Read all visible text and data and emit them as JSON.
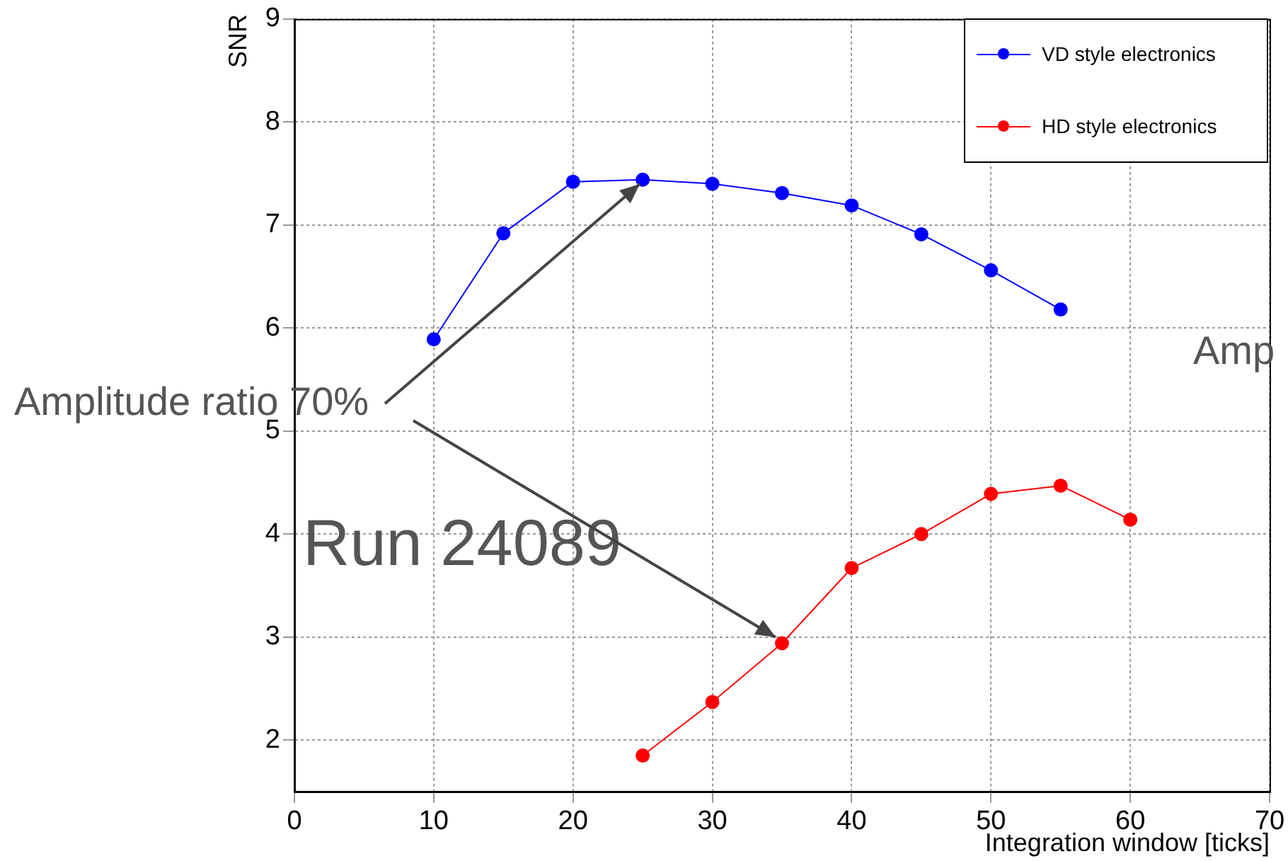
{
  "chart_data": {
    "type": "line",
    "xlabel": "Integration window [ticks]",
    "ylabel": "SNR",
    "xlim": [
      0,
      70
    ],
    "xticks": [
      0,
      10,
      20,
      30,
      40,
      50,
      60,
      70
    ],
    "ylim": [
      1.5,
      9
    ],
    "yticks": [
      2,
      3,
      4,
      5,
      6,
      7,
      8,
      9
    ],
    "grid": true,
    "legend": "top right",
    "marker": "circle",
    "line_style": "solid",
    "series": [
      {
        "name": "VD style electronics",
        "color": "#0000ff",
        "x": [
          10,
          15,
          20,
          25,
          30,
          35,
          40,
          45,
          50,
          55
        ],
        "values": [
          5.89,
          6.92,
          7.42,
          7.44,
          7.4,
          7.31,
          7.19,
          6.91,
          6.56,
          6.18
        ]
      },
      {
        "name": "HD style electronics",
        "color": "#ff0000",
        "x": [
          25,
          30,
          35,
          40,
          45,
          50,
          55,
          60
        ],
        "values": [
          1.85,
          2.37,
          2.94,
          3.67,
          4.0,
          4.39,
          4.47,
          4.14
        ]
      }
    ],
    "annotations": [
      {
        "text": "Amplitude ratio 70%",
        "x": 25,
        "y": 7.44
      },
      "Run 24089",
      "Amp"
    ]
  }
}
